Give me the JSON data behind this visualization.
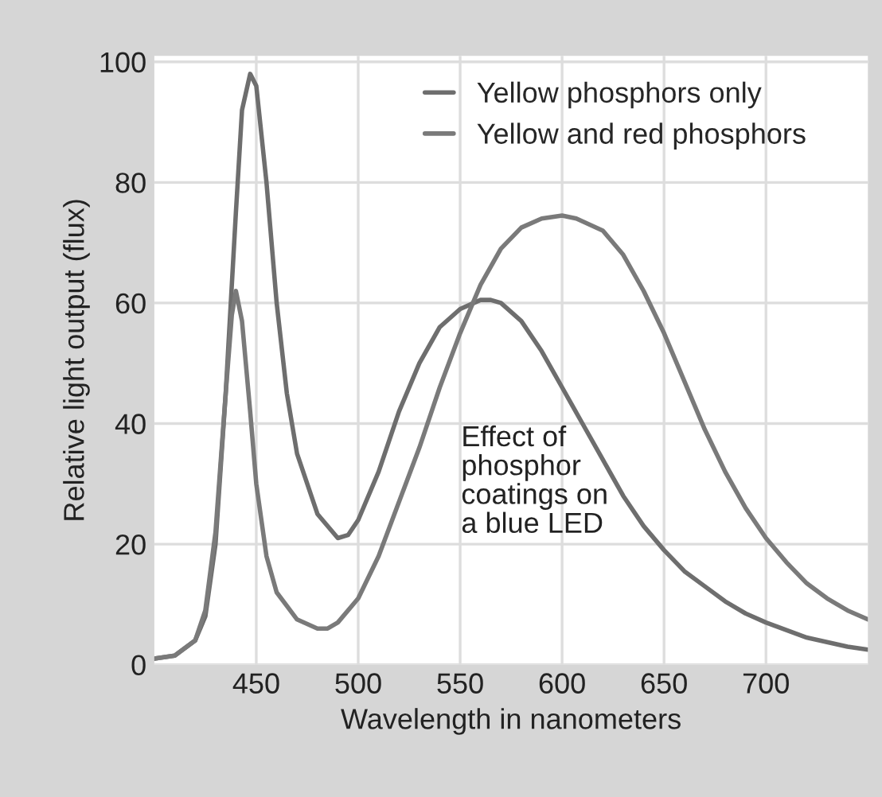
{
  "chart_data": {
    "type": "line",
    "xlabel": "Wavelength in nanometers",
    "ylabel": "Relative light output (flux)",
    "annotations": [
      "Effect of\nphosphor\ncoatings on\na blue LED"
    ],
    "xlim": [
      400,
      750
    ],
    "xticks": [
      450,
      500,
      550,
      600,
      650,
      700
    ],
    "ylim": [
      0,
      101
    ],
    "yticks": [
      0,
      20,
      40,
      60,
      80,
      100
    ],
    "grid": true,
    "legend": "top right",
    "line_style": "solid",
    "marker": "none",
    "series": [
      {
        "name": "Yellow phosphors only",
        "color": "#6e6e6e",
        "x": [
          400,
          410,
          420,
          425,
          430,
          435,
          440,
          443,
          447,
          450,
          455,
          460,
          465,
          470,
          480,
          490,
          495,
          500,
          510,
          520,
          530,
          540,
          550,
          560,
          565,
          570,
          580,
          590,
          600,
          610,
          620,
          630,
          640,
          650,
          660,
          670,
          680,
          690,
          700,
          720,
          740,
          750
        ],
        "values": [
          1,
          1.5,
          4,
          8,
          20,
          45,
          75,
          92,
          98,
          96,
          80,
          60,
          45,
          35,
          25,
          21,
          21.5,
          24,
          32,
          42,
          50,
          56,
          59,
          60.5,
          60.5,
          60,
          57,
          52,
          46,
          40,
          34,
          28,
          23,
          19,
          15.5,
          13,
          10.5,
          8.5,
          7,
          4.5,
          3,
          2.5
        ]
      },
      {
        "name": "Yellow and red phosphors",
        "color": "#7a7a7a",
        "x": [
          400,
          410,
          420,
          425,
          430,
          435,
          438,
          440,
          443,
          447,
          450,
          455,
          460,
          470,
          480,
          485,
          490,
          500,
          510,
          520,
          530,
          540,
          550,
          560,
          570,
          580,
          590,
          600,
          607,
          620,
          630,
          640,
          650,
          660,
          670,
          680,
          690,
          700,
          710,
          720,
          730,
          740,
          750
        ],
        "values": [
          1,
          1.5,
          4,
          9,
          22,
          45,
          58,
          62,
          57,
          42,
          30,
          18,
          12,
          7.5,
          6,
          6,
          7,
          11,
          18,
          27,
          36,
          46,
          55,
          63,
          69,
          72.5,
          74,
          74.5,
          74,
          72,
          68,
          62,
          55,
          47,
          39,
          32,
          26,
          21,
          17,
          13.5,
          11,
          9,
          7.5
        ]
      }
    ]
  }
}
